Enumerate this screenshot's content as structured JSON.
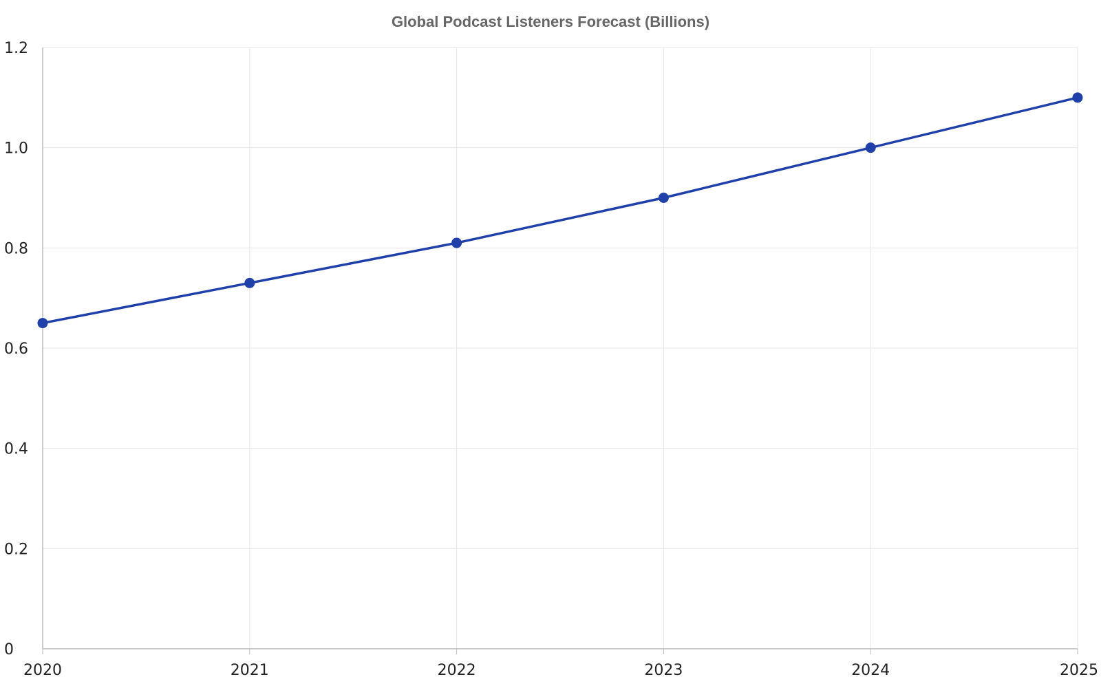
{
  "chart_data": {
    "type": "line",
    "title": "Global Podcast Listeners Forecast (Billions)",
    "xlabel": "",
    "ylabel": "",
    "categories": [
      "2020",
      "2021",
      "2022",
      "2023",
      "2024",
      "2025"
    ],
    "series": [
      {
        "values": [
          0.65,
          0.73,
          0.81,
          0.9,
          1.0,
          1.1
        ],
        "color": "#1f3fa9"
      }
    ],
    "ylim": [
      0,
      1.2
    ],
    "y_ticks": [
      0,
      0.2,
      0.4,
      0.6,
      0.8,
      1.0,
      1.2
    ],
    "y_tick_labels": [
      "0",
      "0.2",
      "0.4",
      "0.6",
      "0.8",
      "1.0",
      "1.2"
    ],
    "grid": true,
    "legend": "none",
    "colors": {
      "grid": "#e6e6e6",
      "axis": "#bbbbbb",
      "title": "#666666"
    }
  }
}
